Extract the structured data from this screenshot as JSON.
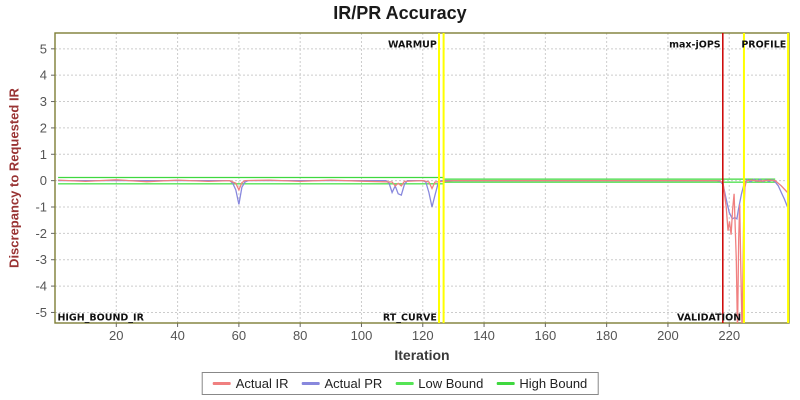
{
  "chart_data": {
    "type": "line",
    "title": "IR/PR Accuracy",
    "xlabel": "Iteration",
    "ylabel": "Discrepancy to Requested IR",
    "xlim": [
      0,
      239.5
    ],
    "ylim": [
      -5.4,
      5.6
    ],
    "xticks": [
      20,
      40,
      60,
      80,
      100,
      120,
      140,
      160,
      180,
      200,
      220
    ],
    "yticks": [
      -5,
      -4,
      -3,
      -2,
      -1,
      0,
      1,
      2,
      3,
      4,
      5
    ],
    "grid": true,
    "legend_position": "bottom",
    "colors": {
      "grid": "#CCCCCC",
      "plot_border": "#7D7D35",
      "tick_text": "#555555",
      "y_axis_label": "#993333",
      "warmup_marker": "#FFFF00",
      "max_jops_marker": "#CC0000"
    },
    "series": [
      {
        "name": "Actual IR",
        "color": "#F08080",
        "points": [
          [
            1,
            0.02
          ],
          [
            10,
            -0.03
          ],
          [
            20,
            0.03
          ],
          [
            30,
            -0.04
          ],
          [
            40,
            0.02
          ],
          [
            50,
            -0.03
          ],
          [
            57,
            0
          ],
          [
            59,
            -0.1
          ],
          [
            60,
            -0.35
          ],
          [
            61,
            -0.08
          ],
          [
            62,
            0
          ],
          [
            70,
            0.02
          ],
          [
            80,
            -0.03
          ],
          [
            90,
            0.02
          ],
          [
            100,
            -0.02
          ],
          [
            110,
            -0.05
          ],
          [
            111,
            -0.2
          ],
          [
            112,
            -0.1
          ],
          [
            113,
            -0.2
          ],
          [
            114,
            -0.03
          ],
          [
            120,
            0
          ],
          [
            122,
            -0.05
          ],
          [
            123,
            -0.3
          ],
          [
            124,
            -0.05
          ],
          [
            130,
            0
          ],
          [
            150,
            0
          ],
          [
            170,
            0
          ],
          [
            190,
            0
          ],
          [
            210,
            0
          ],
          [
            217,
            0
          ],
          [
            218,
            -0.1
          ],
          [
            219,
            -1.0
          ],
          [
            219.6,
            -1.9
          ],
          [
            220.1,
            -1.55
          ],
          [
            220.6,
            -2.05
          ],
          [
            221.1,
            -1.1
          ],
          [
            221.6,
            -0.5
          ],
          [
            222.3,
            -3.0
          ],
          [
            222.7,
            -5.8
          ],
          [
            223.1,
            -2.2
          ],
          [
            223.4,
            -0.9
          ],
          [
            223.8,
            -3.5
          ],
          [
            224.2,
            -5.8
          ],
          [
            224.7,
            -1.6
          ],
          [
            225.1,
            -0.25
          ],
          [
            225.6,
            0
          ],
          [
            227,
            0.02
          ],
          [
            230,
            -0.02
          ],
          [
            233,
            0.02
          ],
          [
            235,
            0
          ],
          [
            237,
            -0.2
          ],
          [
            239,
            -0.45
          ]
        ]
      },
      {
        "name": "Actual PR",
        "color": "#8888DD",
        "points": [
          [
            1,
            0
          ],
          [
            20,
            0
          ],
          [
            40,
            0
          ],
          [
            57,
            0
          ],
          [
            58,
            -0.1
          ],
          [
            59,
            -0.35
          ],
          [
            60,
            -0.9
          ],
          [
            61,
            -0.25
          ],
          [
            62,
            -0.05
          ],
          [
            63,
            0
          ],
          [
            80,
            0
          ],
          [
            100,
            0
          ],
          [
            108,
            0
          ],
          [
            109,
            -0.1
          ],
          [
            110,
            -0.45
          ],
          [
            111,
            -0.2
          ],
          [
            112,
            -0.5
          ],
          [
            113,
            -0.55
          ],
          [
            114,
            -0.15
          ],
          [
            115,
            0
          ],
          [
            120,
            0
          ],
          [
            121,
            -0.05
          ],
          [
            122,
            -0.45
          ],
          [
            123,
            -1.0
          ],
          [
            124,
            -0.55
          ],
          [
            125,
            -0.1
          ],
          [
            126,
            0
          ],
          [
            140,
            0
          ],
          [
            160,
            0
          ],
          [
            180,
            0
          ],
          [
            200,
            0
          ],
          [
            216,
            0
          ],
          [
            217,
            -0.02
          ],
          [
            218,
            -0.15
          ],
          [
            219,
            -0.7
          ],
          [
            220,
            -1.2
          ],
          [
            221,
            -1.45
          ],
          [
            221.8,
            -1.4
          ],
          [
            222.5,
            -1.45
          ],
          [
            223,
            -1.1
          ],
          [
            224,
            -0.5
          ],
          [
            225,
            -0.05
          ],
          [
            226,
            0.04
          ],
          [
            227,
            -0.04
          ],
          [
            228,
            0.05
          ],
          [
            229,
            -0.03
          ],
          [
            230,
            0.05
          ],
          [
            231,
            -0.04
          ],
          [
            232,
            0.03
          ],
          [
            233,
            -0.03
          ],
          [
            234,
            0.04
          ],
          [
            235,
            -0.05
          ],
          [
            236,
            -0.2
          ],
          [
            237,
            -0.45
          ],
          [
            238,
            -0.7
          ],
          [
            239,
            -1.0
          ]
        ]
      },
      {
        "name": "Low Bound",
        "color": "#55E455",
        "points": [
          [
            1,
            -0.12
          ],
          [
            126.5,
            -0.12
          ],
          [
            127,
            -0.06
          ],
          [
            235,
            -0.06
          ]
        ]
      },
      {
        "name": "High Bound",
        "color": "#3FD83F",
        "points": [
          [
            1,
            0.12
          ],
          [
            126.5,
            0.12
          ],
          [
            127,
            0.06
          ],
          [
            235,
            0.06
          ]
        ]
      }
    ],
    "markers": [
      {
        "label": "warmup-end-1",
        "x": 125.3,
        "color": "#FFFF00",
        "width": 2
      },
      {
        "label": "warmup-end-2",
        "x": 126.8,
        "color": "#FFFF00",
        "width": 2
      },
      {
        "label": "max-jops",
        "x": 217.9,
        "color": "#CC0000",
        "width": 1.5
      },
      {
        "label": "validation-end",
        "x": 224.8,
        "color": "#FFFF00",
        "width": 2
      },
      {
        "label": "profile-end",
        "x": 239.2,
        "color": "#FFFF00",
        "width": 2
      }
    ],
    "annotations": [
      {
        "text": "WARMUP",
        "x": 124.6,
        "y": 5.05,
        "anchor": "end"
      },
      {
        "text": "max-jOPS",
        "x": 217.2,
        "y": 5.05,
        "anchor": "end"
      },
      {
        "text": "PROFILE",
        "x": 238.6,
        "y": 5.05,
        "anchor": "end"
      },
      {
        "text": "HIGH_BOUND_IR",
        "x": 0.8,
        "y": -5.3,
        "anchor": "start"
      },
      {
        "text": "RT_CURVE",
        "x": 124.6,
        "y": -5.3,
        "anchor": "end"
      },
      {
        "text": "VALIDATION",
        "x": 223.9,
        "y": -5.3,
        "anchor": "end"
      }
    ]
  },
  "legend": {
    "entries": [
      {
        "label": "Actual IR",
        "color": "#F08080"
      },
      {
        "label": "Actual PR",
        "color": "#8888DD"
      },
      {
        "label": "Low Bound",
        "color": "#55E455"
      },
      {
        "label": "High Bound",
        "color": "#3FD83F"
      }
    ]
  }
}
